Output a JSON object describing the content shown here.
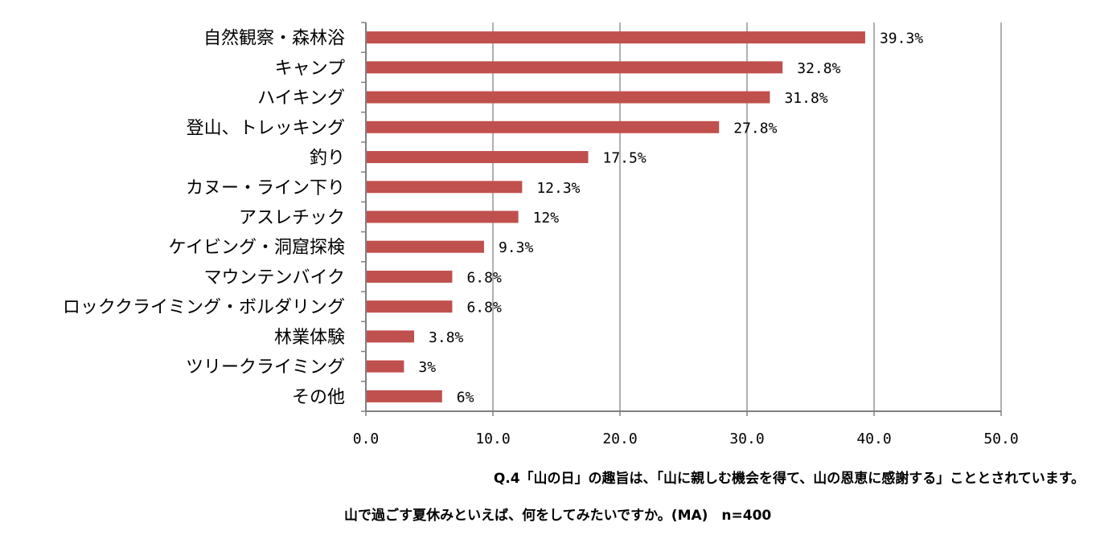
{
  "chart_data": {
    "type": "bar",
    "orientation": "horizontal",
    "categories": [
      "自然観察・森林浴",
      "キャンプ",
      "ハイキング",
      "登山、トレッキング",
      "釣り",
      "カヌー・ライン下り",
      "アスレチック",
      "ケイビング・洞窟探検",
      "マウンテンバイク",
      "ロッククライミング・ボルダリング",
      "林業体験",
      "ツリークライミング",
      "その他"
    ],
    "values": [
      39.3,
      32.8,
      31.8,
      27.8,
      17.5,
      12.3,
      12,
      9.3,
      6.8,
      6.8,
      3.8,
      3,
      6
    ],
    "value_labels": [
      "39.3%",
      "32.8%",
      "31.8%",
      "27.8%",
      "17.5%",
      "12.3%",
      "12%",
      "9.3%",
      "6.8%",
      "6.8%",
      "3.8%",
      "3%",
      "6%"
    ],
    "xlim": [
      0,
      50
    ],
    "x_ticks": [
      0,
      10,
      20,
      30,
      40,
      50
    ],
    "x_tick_labels": [
      "0.0",
      "10.0",
      "20.0",
      "30.0",
      "40.0",
      "50.0"
    ],
    "grid": true,
    "legend": "none",
    "bar_color": "#c0504d",
    "grid_color": "#b0b0b0"
  },
  "caption": {
    "line1": "Q.4「山の日」の趣旨は、「山に親しむ機会を得て、山の恩恵に感謝する」こととされています。",
    "line2": "山で過ごす夏休みといえば、何をしてみたいですか。(MA)　n=400"
  }
}
